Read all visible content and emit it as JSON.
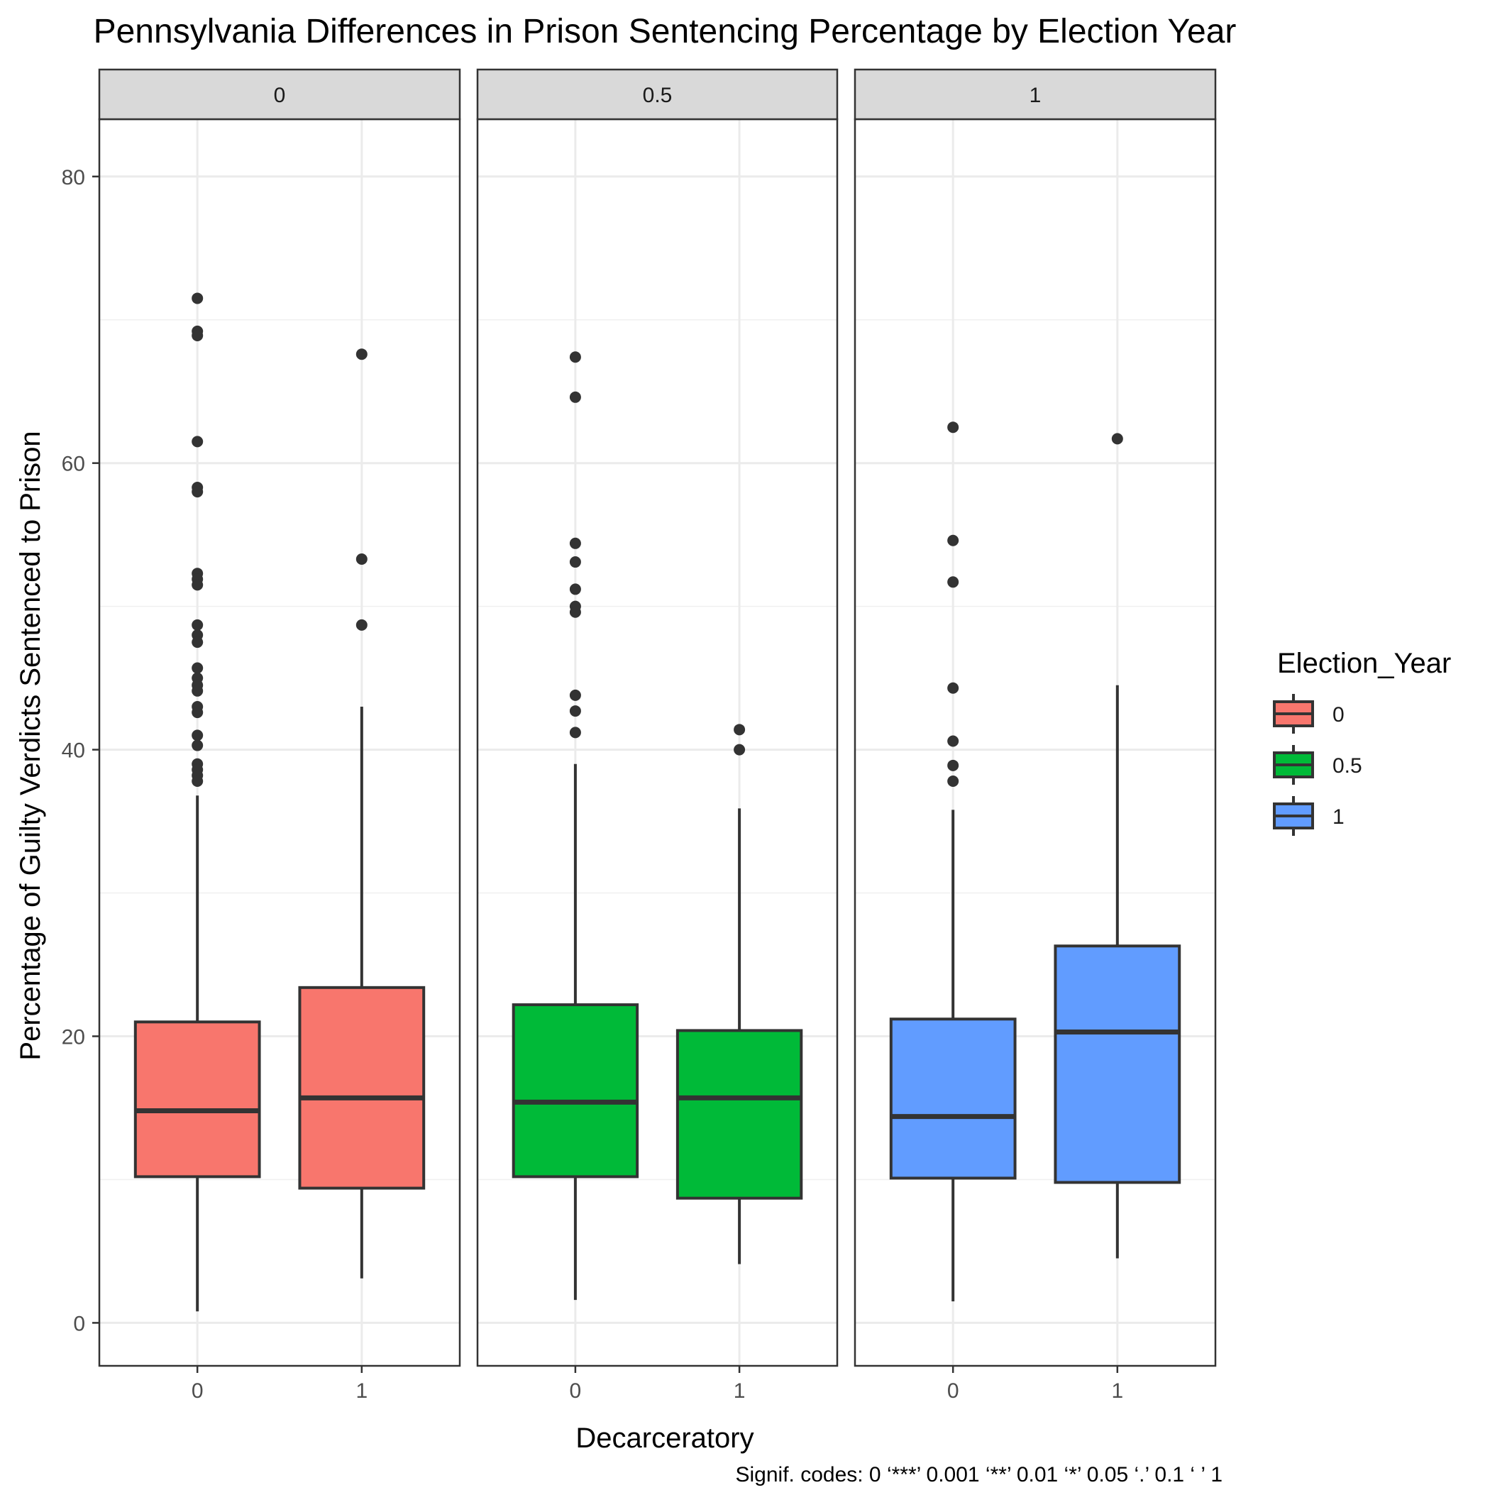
{
  "chart_data": {
    "type": "boxplot",
    "title": "Pennsylvania Differences in Prison Sentencing Percentage by Election Year",
    "xlabel": "Decarceratory",
    "ylabel": "Percentage of Guilty Verdicts Sentenced to Prison",
    "ylim": [
      -3,
      84
    ],
    "yticks": [
      0,
      20,
      40,
      60,
      80
    ],
    "x_categories": [
      "0",
      "1"
    ],
    "facet_variable": "Election_Year",
    "grid": true,
    "legend": {
      "title": "Election_Year",
      "position": "right",
      "items": [
        {
          "label": "0",
          "color": "#F8766D"
        },
        {
          "label": "0.5",
          "color": "#00BA38"
        },
        {
          "label": "1",
          "color": "#619CFF"
        }
      ]
    },
    "facets": [
      {
        "label": "0",
        "color": "#F8766D",
        "boxes": [
          {
            "x": "0",
            "whisker_low": 0.8,
            "q1": 10.2,
            "median": 14.8,
            "q3": 21.0,
            "whisker_high": 36.8,
            "outliers": [
              71.5,
              69.2,
              68.9,
              61.5,
              58.3,
              58.0,
              52.3,
              51.9,
              51.5,
              48.7,
              48.0,
              47.5,
              45.7,
              45.0,
              44.5,
              44.1,
              43.0,
              42.6,
              41.0,
              40.3,
              39.0,
              38.6,
              38.2,
              37.8
            ]
          },
          {
            "x": "1",
            "whisker_low": 3.1,
            "q1": 9.4,
            "median": 15.7,
            "q3": 23.4,
            "whisker_high": 43.0,
            "outliers": [
              67.6,
              53.3,
              48.7
            ]
          }
        ]
      },
      {
        "label": "0.5",
        "color": "#00BA38",
        "boxes": [
          {
            "x": "0",
            "whisker_low": 1.6,
            "q1": 10.2,
            "median": 15.4,
            "q3": 22.2,
            "whisker_high": 39.0,
            "outliers": [
              67.4,
              64.6,
              54.4,
              53.1,
              51.2,
              50.0,
              49.6,
              43.8,
              42.7,
              41.2
            ]
          },
          {
            "x": "1",
            "whisker_low": 4.1,
            "q1": 8.7,
            "median": 15.7,
            "q3": 20.4,
            "whisker_high": 35.9,
            "outliers": [
              41.4,
              40.0
            ]
          }
        ]
      },
      {
        "label": "1",
        "color": "#619CFF",
        "boxes": [
          {
            "x": "0",
            "whisker_low": 1.5,
            "q1": 10.1,
            "median": 14.4,
            "q3": 21.2,
            "whisker_high": 35.8,
            "outliers": [
              62.5,
              54.6,
              51.7,
              44.3,
              40.6,
              38.9,
              37.8
            ]
          },
          {
            "x": "1",
            "whisker_low": 4.5,
            "q1": 9.8,
            "median": 20.3,
            "q3": 26.3,
            "whisker_high": 44.5,
            "outliers": [
              61.7
            ]
          }
        ]
      }
    ],
    "caption": "Signif. codes:  0 ‘***’ 0.001 ‘**’ 0.01 ‘*’ 0.05 ‘.’ 0.1 ‘ ’ 1"
  }
}
